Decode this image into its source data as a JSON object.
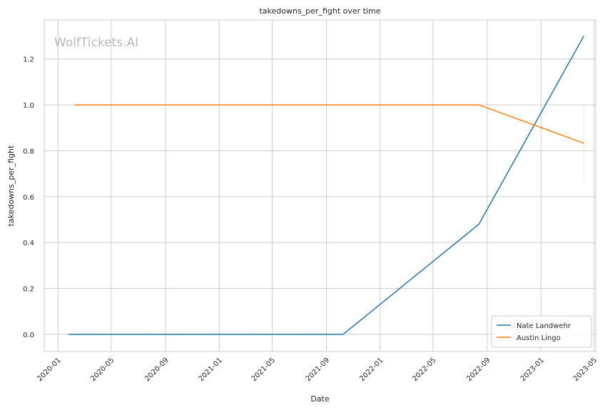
{
  "chart_data": {
    "type": "line",
    "title": "takedowns_per_fight over time",
    "xlabel": "Date",
    "ylabel": "takedowns_per_fight",
    "watermark": "WolfTickets.AI",
    "x_axis_type": "date",
    "xlim": [
      "2019-12-01",
      "2023-05-05"
    ],
    "ylim": [
      -0.075,
      1.37
    ],
    "x_ticks": [
      {
        "date": "2020-01-01",
        "label": "2020-01"
      },
      {
        "date": "2020-05-01",
        "label": "2020-05"
      },
      {
        "date": "2020-09-01",
        "label": "2020-09"
      },
      {
        "date": "2021-01-01",
        "label": "2021-01"
      },
      {
        "date": "2021-05-01",
        "label": "2021-05"
      },
      {
        "date": "2021-09-01",
        "label": "2021-09"
      },
      {
        "date": "2022-01-01",
        "label": "2022-01"
      },
      {
        "date": "2022-05-01",
        "label": "2022-05"
      },
      {
        "date": "2022-09-01",
        "label": "2022-09"
      },
      {
        "date": "2023-01-01",
        "label": "2023-01"
      },
      {
        "date": "2023-05-01",
        "label": "2023-05"
      }
    ],
    "y_ticks": [
      {
        "value": 0.0,
        "label": "0.0"
      },
      {
        "value": 0.2,
        "label": "0.2"
      },
      {
        "value": 0.4,
        "label": "0.4"
      },
      {
        "value": 0.6,
        "label": "0.6"
      },
      {
        "value": 0.8,
        "label": "0.8"
      },
      {
        "value": 1.0,
        "label": "1.0"
      },
      {
        "value": 1.2,
        "label": "1.2"
      }
    ],
    "grid": true,
    "legend_position": "bottom-right",
    "series": [
      {
        "name": "Nate Landwehr",
        "color": "#1f77b4",
        "x": [
          "2020-01-25",
          "2021-10-09",
          "2022-08-13",
          "2023-04-08"
        ],
        "y": [
          0.0,
          0.0,
          0.48,
          1.3
        ]
      },
      {
        "name": "Austin Lingo",
        "color": "#ff7f0e",
        "x": [
          "2020-02-08",
          "2022-08-13",
          "2023-04-08"
        ],
        "y": [
          1.0,
          1.0,
          0.833
        ]
      }
    ],
    "error_bars": [
      {
        "series": "Austin Lingo",
        "x": "2023-04-08",
        "low": 0.667,
        "high": 1.0
      }
    ]
  }
}
